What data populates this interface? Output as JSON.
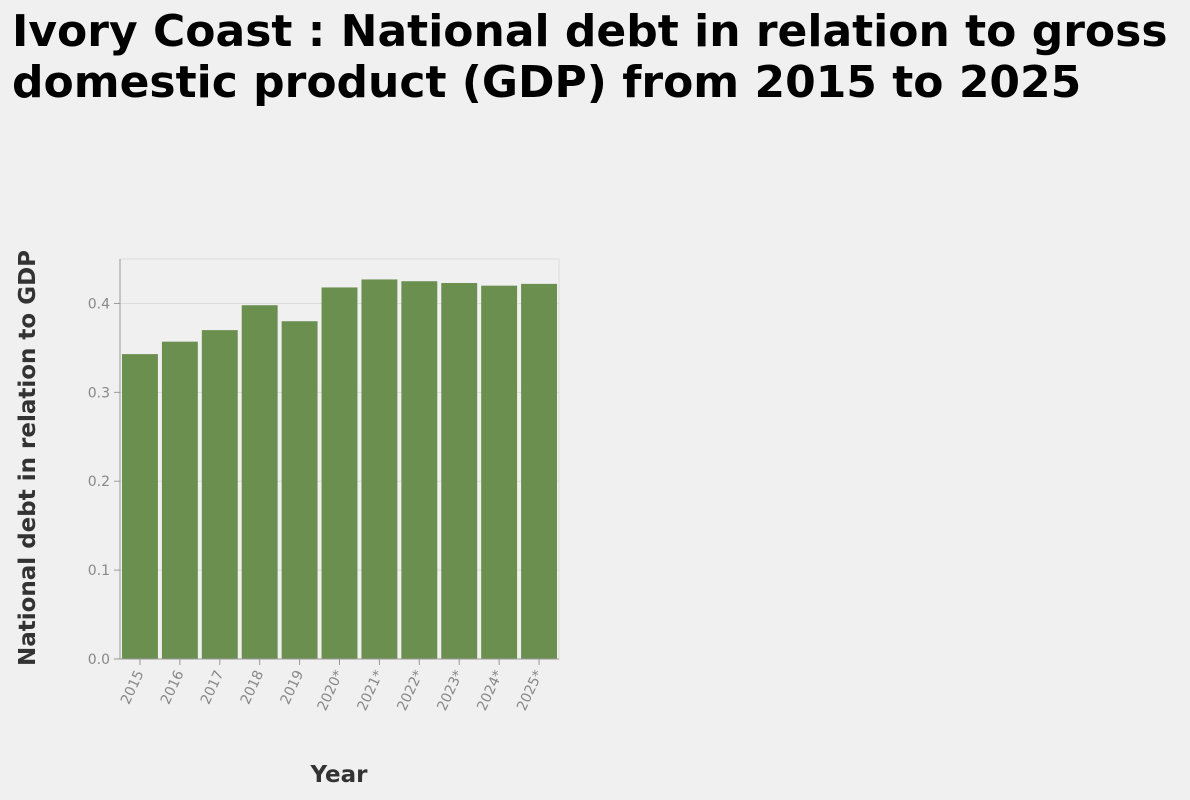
{
  "chart_data": {
    "type": "bar",
    "title": "Ivory Coast : National debt in relation to gross domestic product (GDP) from 2015 to 2025",
    "xlabel": "Year",
    "ylabel": "National debt in relation to GDP",
    "categories": [
      "2015",
      "2016",
      "2017",
      "2018",
      "2019",
      "2020*",
      "2021*",
      "2022*",
      "2023*",
      "2024*",
      "2025*"
    ],
    "values": [
      0.343,
      0.357,
      0.37,
      0.398,
      0.38,
      0.418,
      0.427,
      0.425,
      0.423,
      0.42,
      0.422
    ],
    "ylim": [
      0,
      0.45
    ],
    "yticks": [
      0.0,
      0.1,
      0.2,
      0.3,
      0.4
    ],
    "ytick_labels": [
      "0.0",
      "0.1",
      "0.2",
      "0.3",
      "0.4"
    ],
    "grid": true,
    "legend": "none",
    "bar_color": "#6b8f4e"
  }
}
